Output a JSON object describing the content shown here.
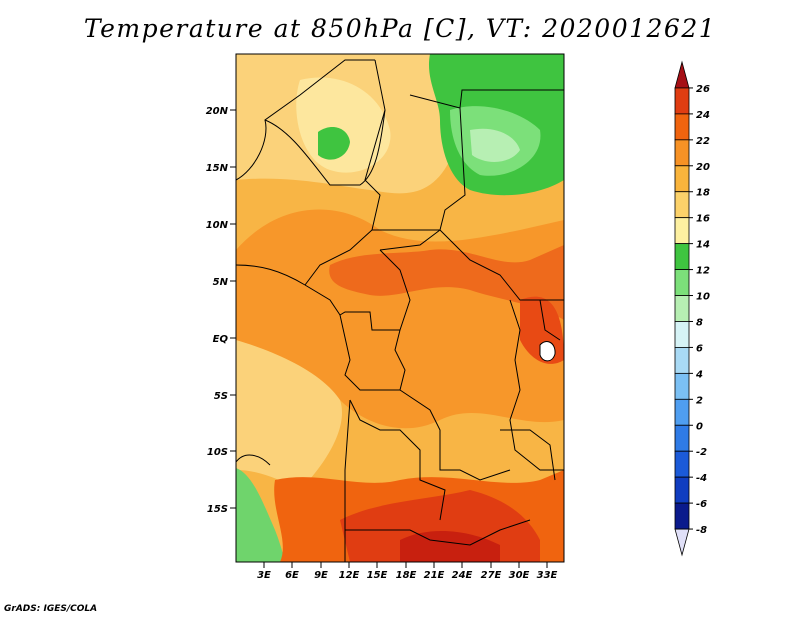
{
  "title": "Temperature at 850hPa [C], VT: 2020012621",
  "footer": "GrADS: IGES/COLA",
  "map": {
    "lat_labels": [
      "20N",
      "15N",
      "10N",
      "5N",
      "EQ",
      "5S",
      "10S",
      "15S"
    ],
    "lon_labels": [
      "3E",
      "6E",
      "9E",
      "12E",
      "15E",
      "18E",
      "21E",
      "24E",
      "27E",
      "30E",
      "33E"
    ]
  },
  "colorbar": {
    "labels": [
      "26",
      "24",
      "22",
      "20",
      "18",
      "16",
      "14",
      "12",
      "10",
      "8",
      "6",
      "4",
      "2",
      "0",
      "-2",
      "-4",
      "-6",
      "-8"
    ],
    "colors": [
      "#a50f15",
      "#e03d12",
      "#f0640f",
      "#f79225",
      "#f9b43c",
      "#fcd26a",
      "#fdf0a1",
      "#3fc440",
      "#7ce07a",
      "#b7efb3",
      "#d6f3f6",
      "#a9daf5",
      "#7bc0f4",
      "#4f9ef0",
      "#2f7be6",
      "#1b5ad8",
      "#103dc0",
      "#0a1a8c",
      "#e0e0f8"
    ]
  }
}
